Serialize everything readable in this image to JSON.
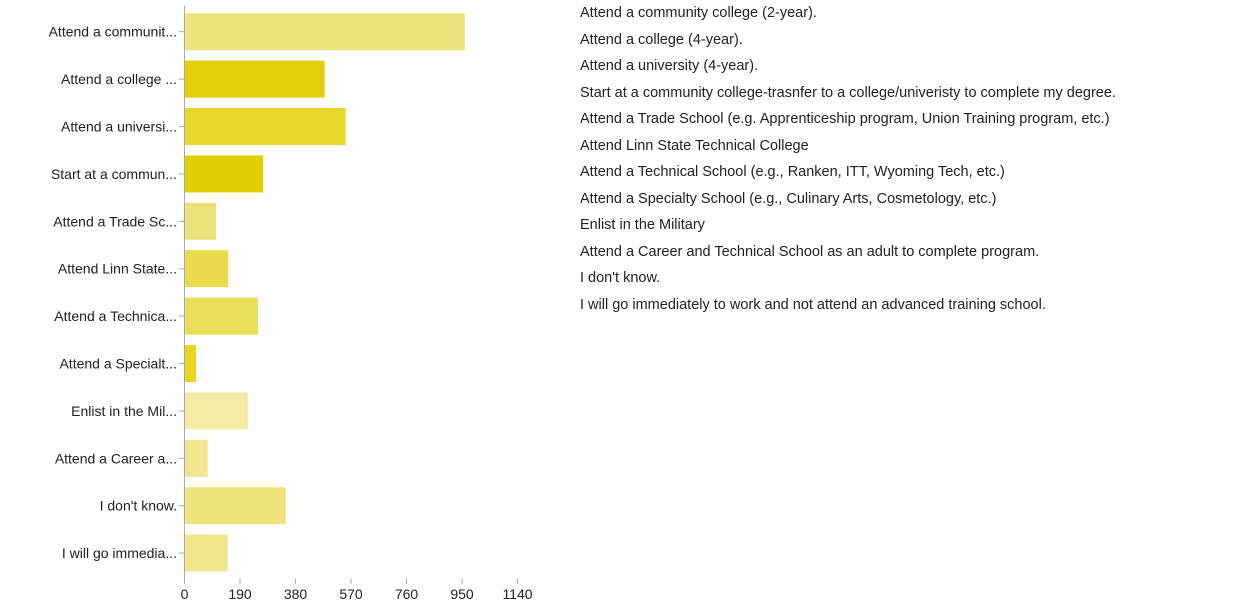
{
  "chart_data": {
    "type": "bar",
    "orientation": "horizontal",
    "categories": [
      "Attend a communit...",
      "Attend a college ...",
      "Attend a universi...",
      "Start at a commun...",
      "Attend a Trade Sc...",
      "Attend Linn State...",
      "Attend a Technica...",
      "Attend a Specialt...",
      "Enlist in the Mil...",
      "Attend a Career a...",
      "I don't know.",
      "I will go immedia..."
    ],
    "values": [
      958,
      478,
      550,
      268,
      106,
      148,
      250,
      38,
      215,
      78,
      345,
      146
    ],
    "bar_colors": [
      "#ede47b",
      "#e3d007",
      "#e8d72b",
      "#e1d000",
      "#ebe27a",
      "#e9db4b",
      "#eade58",
      "#e7d71e",
      "#f4eca5",
      "#efe68e",
      "#eee47b",
      "#efe68a"
    ],
    "xlim": [
      0,
      1140
    ],
    "x_ticks": [
      "0",
      "190",
      "380",
      "570",
      "760",
      "950",
      "1140"
    ],
    "grid": false,
    "title": "",
    "xlabel": "",
    "ylabel": ""
  },
  "legend_list": [
    "Attend a community college (2-year).",
    "Attend a college (4-year).",
    "Attend a university (4-year).",
    "Start at a community college-trasnfer to a college/univeristy to complete my degree.",
    "Attend a Trade School (e.g. Apprenticeship program, Union Training program, etc.)",
    "Attend Linn State Technical College",
    "Attend a Technical School (e.g., Ranken, ITT, Wyoming Tech, etc.)",
    "Attend a Specialty School (e.g., Culinary Arts, Cosmetology, etc.)",
    "Enlist in the Military",
    "Attend a Career and Technical School as an adult to complete program.",
    "I don't know.",
    "I will go immediately to work and not attend an advanced training school."
  ]
}
